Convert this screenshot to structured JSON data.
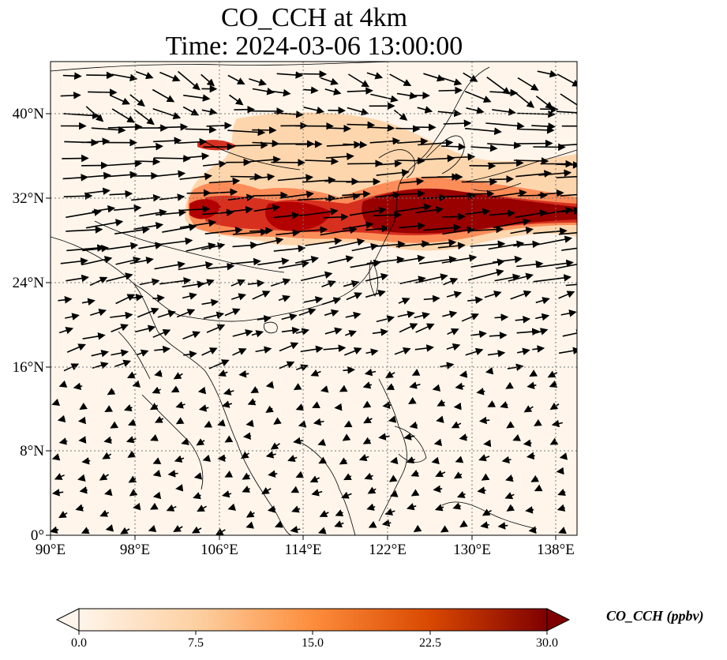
{
  "title": "CO_CCH at 4km",
  "subtitle": "Time: 2024-03-06 13:00:00",
  "colors": {
    "low": "#fff5eb",
    "mid": "#fdae6b",
    "high": "#7f0000",
    "coast": "#000000",
    "grid": "#777777"
  },
  "map": {
    "lon_ticks": [
      "90°E",
      "98°E",
      "106°E",
      "114°E",
      "122°E",
      "130°E",
      "138°E"
    ],
    "lat_ticks": [
      "0°",
      "8°N",
      "16°N",
      "24°N",
      "32°N",
      "40°N"
    ],
    "lon_range": [
      90,
      140
    ],
    "lat_range": [
      0,
      45
    ]
  },
  "colorbar": {
    "label": "CO_CCH (ppbv)",
    "ticks": [
      "0.0",
      "7.5",
      "15.0",
      "22.5",
      "30.0"
    ],
    "min": 0,
    "max": 30
  }
}
